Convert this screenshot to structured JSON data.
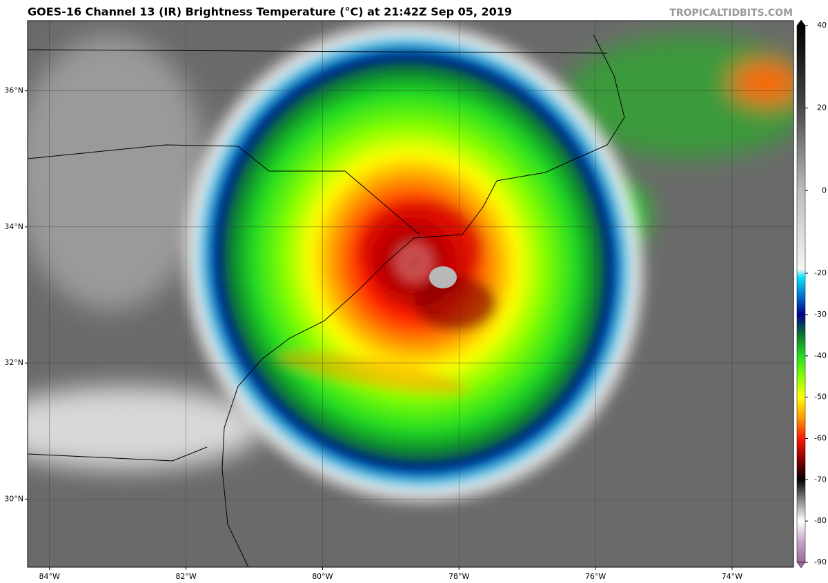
{
  "map": {
    "title": "GOES-16 Channel 13 (IR) Brightness Temperature (°C) at 21:42Z Sep 05, 2019",
    "watermark": "TROPICALTIDBITS.COM",
    "lon_range": [
      -84.32,
      -73.1
    ],
    "lat_range": [
      29.0,
      37.03
    ],
    "lon_ticks": [
      {
        "value": -84,
        "label": "84°W"
      },
      {
        "value": -82,
        "label": "82°W"
      },
      {
        "value": -80,
        "label": "80°W"
      },
      {
        "value": -78,
        "label": "78°W"
      },
      {
        "value": -76,
        "label": "76°W"
      },
      {
        "value": -74,
        "label": "74°W"
      }
    ],
    "lat_ticks": [
      {
        "value": 36,
        "label": "36°N"
      },
      {
        "value": 34,
        "label": "34°N"
      },
      {
        "value": 32,
        "label": "32°N"
      },
      {
        "value": 30,
        "label": "30°N"
      }
    ],
    "colorbar": {
      "range": [
        -90,
        40
      ],
      "ticks": [
        40,
        20,
        0,
        -20,
        -30,
        -40,
        -50,
        -60,
        -70,
        -80,
        -90
      ],
      "stops": [
        {
          "value": 40,
          "color": "#000000"
        },
        {
          "value": 20,
          "color": "#4a4a4a"
        },
        {
          "value": 0,
          "color": "#bdbdbd"
        },
        {
          "value": -19,
          "color": "#f5f5f5"
        },
        {
          "value": -21,
          "color": "#00e5ff"
        },
        {
          "value": -26,
          "color": "#0066cc"
        },
        {
          "value": -30,
          "color": "#00008a"
        },
        {
          "value": -35,
          "color": "#0a7a30"
        },
        {
          "value": -40,
          "color": "#22dd22"
        },
        {
          "value": -45,
          "color": "#88ff00"
        },
        {
          "value": -50,
          "color": "#ffff00"
        },
        {
          "value": -55,
          "color": "#ff9900"
        },
        {
          "value": -60,
          "color": "#ff1a00"
        },
        {
          "value": -65,
          "color": "#8b0000"
        },
        {
          "value": -70,
          "color": "#000000"
        },
        {
          "value": -75,
          "color": "#8a8a8a"
        },
        {
          "value": -80,
          "color": "#ffffff"
        },
        {
          "value": -85,
          "color": "#c9a5c9"
        },
        {
          "value": -90,
          "color": "#9a6a9a"
        }
      ]
    }
  }
}
